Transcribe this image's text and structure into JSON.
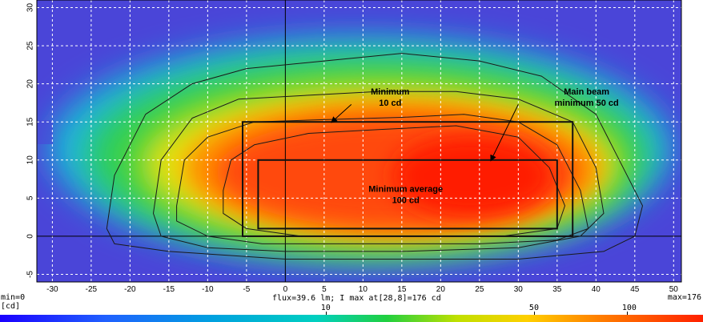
{
  "chart_data": {
    "type": "heatmap",
    "xlim": [
      -32,
      51
    ],
    "ylim": [
      -6,
      31
    ],
    "x_ticks": [
      -30,
      -25,
      -20,
      -15,
      -10,
      -5,
      0,
      5,
      10,
      15,
      20,
      25,
      30,
      35,
      40,
      45,
      50
    ],
    "y_ticks": [
      -5,
      0,
      5,
      10,
      15,
      20,
      25,
      30
    ],
    "grid": true,
    "flux_label": "flux=39.6 lm; I max at[28,8]=176 cd",
    "min_label": "min=0",
    "max_label": "max=176",
    "unit_label": "[cd]",
    "colorbar_ticks": [
      {
        "label": "10",
        "value": 10
      },
      {
        "label": "50",
        "value": 50
      },
      {
        "label": "100",
        "value": 100
      }
    ],
    "boxes": [
      {
        "name": "outer-box",
        "x1": -5.5,
        "y1": 0,
        "x2": 37,
        "y2": 15
      },
      {
        "name": "inner-box",
        "x1": -3.5,
        "y1": 1,
        "x2": 35,
        "y2": 10
      }
    ],
    "annotations": [
      {
        "line1": "Minimum",
        "line2": "10 cd",
        "x": 13.5,
        "y": 18.6,
        "arrow_from": [
          8.5,
          17.3
        ],
        "arrow_to": [
          6,
          15
        ]
      },
      {
        "line1": "Main beam",
        "line2": "minimum 50 cd",
        "x": 38.8,
        "y": 18.6,
        "arrow_from": [
          30,
          17.3
        ],
        "arrow_to": [
          26.5,
          10
        ]
      },
      {
        "line1": "Minimum average",
        "line2": "100 cd",
        "x": 15.5,
        "y": 5.8
      }
    ],
    "contour_levels": [
      10,
      25,
      50,
      100
    ]
  },
  "colors": {
    "low": "#4a45d8",
    "mid": "#00c8c8",
    "high": "#ff2000"
  }
}
